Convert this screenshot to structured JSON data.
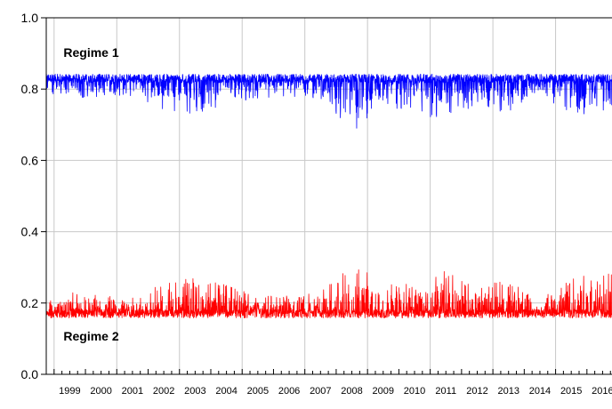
{
  "chart_data": {
    "type": "line",
    "title": "",
    "xlabel": "",
    "ylabel": "",
    "xlim": [
      1998.75,
      2016.8
    ],
    "ylim": [
      0.0,
      1.0
    ],
    "yticks": [
      "0.0",
      "0.2",
      "0.4",
      "0.6",
      "0.8",
      "1.0"
    ],
    "year_labels": [
      "1999",
      "2000",
      "2001",
      "2002",
      "2003",
      "2004",
      "2005",
      "2006",
      "2007",
      "2008",
      "2009",
      "2010",
      "2011",
      "2012",
      "2013",
      "2014",
      "2015",
      "2016"
    ],
    "grid": true,
    "annotations": [
      {
        "text": "Regime 1",
        "x": 1999.3,
        "y": 0.89
      },
      {
        "text": "Regime 2",
        "x": 1999.3,
        "y": 0.095
      }
    ],
    "series": [
      {
        "label": "Regime 1",
        "color": "#0000ff",
        "baseline": 0.83,
        "base_noise": 0.012,
        "min": 0.685,
        "max": 0.845,
        "x": [
          1998.75,
          1999.5,
          2000.5,
          2001.5,
          2002.5,
          2003.5,
          2004.5,
          2005.5,
          2006.5,
          2007.5,
          2008.0,
          2008.5,
          2008.85,
          2009.5,
          2010.5,
          2011.5,
          2012.5,
          2013.5,
          2014.5,
          2015.0,
          2015.5,
          2016.5
        ],
        "spike_extent": [
          0.06,
          0.06,
          0.05,
          0.05,
          0.09,
          0.1,
          0.08,
          0.06,
          0.05,
          0.06,
          0.1,
          0.14,
          0.14,
          0.08,
          0.09,
          0.13,
          0.07,
          0.1,
          0.03,
          0.08,
          0.1,
          0.12
        ]
      },
      {
        "label": "Regime 2",
        "color": "#ff0000",
        "baseline": 0.17,
        "base_noise": 0.012,
        "min": 0.155,
        "max": 0.315,
        "x": [
          1998.75,
          1999.5,
          2000.5,
          2001.5,
          2002.5,
          2003.5,
          2004.5,
          2005.5,
          2006.5,
          2007.5,
          2008.0,
          2008.5,
          2008.85,
          2009.5,
          2010.5,
          2011.5,
          2012.5,
          2013.5,
          2014.5,
          2015.0,
          2015.5,
          2016.5
        ],
        "spike_extent": [
          0.06,
          0.06,
          0.05,
          0.05,
          0.09,
          0.1,
          0.08,
          0.06,
          0.05,
          0.06,
          0.1,
          0.14,
          0.14,
          0.08,
          0.09,
          0.13,
          0.07,
          0.1,
          0.03,
          0.08,
          0.1,
          0.12
        ]
      }
    ]
  }
}
